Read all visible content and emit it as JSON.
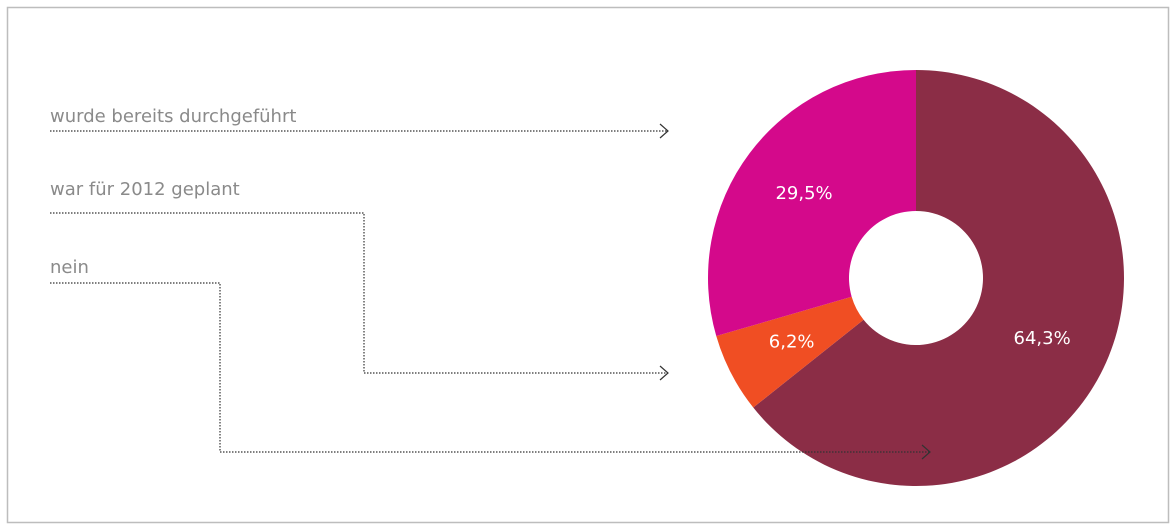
{
  "chart_data": {
    "type": "donut",
    "categories": [
      "nein",
      "war für 2012 geplant",
      "wurde bereits durchgeführt"
    ],
    "values": [
      64.3,
      6.2,
      29.5
    ],
    "value_labels": [
      "64,3%",
      "6,2%",
      "29,5%"
    ],
    "colors": [
      "#8b2d46",
      "#f04e23",
      "#d4098b"
    ]
  }
}
